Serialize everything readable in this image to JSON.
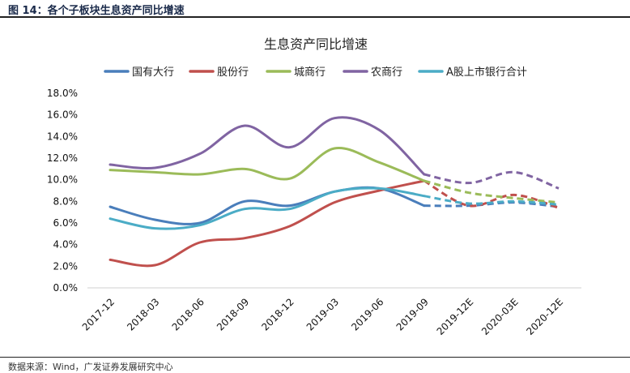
{
  "figure_title": "图 14：各个子板块生息资产同比增速",
  "source": "数据来源：Wind，广发证券发展研究中心",
  "chart_data": {
    "type": "line",
    "title": "生息资产同比增速",
    "categories": [
      "2017-12",
      "2018-03",
      "2018-06",
      "2018-09",
      "2018-12",
      "2019-03",
      "2019-06",
      "2019-09",
      "2019-12E",
      "2020-03E",
      "2020-12E"
    ],
    "forecast_start_index": 7,
    "ylim": [
      0,
      18
    ],
    "yticks": [
      0,
      2,
      4,
      6,
      8,
      10,
      12,
      14,
      16,
      18
    ],
    "ytick_labels": [
      "0.0%",
      "2.0%",
      "4.0%",
      "6.0%",
      "8.0%",
      "10.0%",
      "12.0%",
      "14.0%",
      "16.0%",
      "18.0%"
    ],
    "unit": "%",
    "grid": false,
    "legend_position": "top",
    "series": [
      {
        "name": "国有大行",
        "color": "#4a7ebb",
        "values": [
          7.5,
          6.3,
          6.0,
          8.0,
          7.6,
          8.9,
          9.2,
          7.6,
          7.6,
          7.9,
          7.5
        ]
      },
      {
        "name": "股份行",
        "color": "#c0504d",
        "values": [
          2.6,
          2.1,
          4.2,
          4.6,
          5.7,
          7.9,
          9.0,
          9.9,
          7.6,
          8.6,
          7.4
        ]
      },
      {
        "name": "城商行",
        "color": "#9bbb59",
        "values": [
          10.9,
          10.7,
          10.5,
          11.0,
          10.1,
          12.9,
          11.6,
          9.9,
          8.8,
          8.3,
          7.9
        ]
      },
      {
        "name": "农商行",
        "color": "#8064a2",
        "values": [
          11.4,
          11.1,
          12.4,
          15.0,
          13.0,
          15.7,
          14.6,
          10.5,
          9.7,
          10.7,
          9.2
        ]
      },
      {
        "name": "A股上市银行合计",
        "color": "#4bacc6",
        "values": [
          6.4,
          5.5,
          5.8,
          7.3,
          7.3,
          8.9,
          9.2,
          8.5,
          7.8,
          8.0,
          7.7
        ]
      }
    ]
  }
}
